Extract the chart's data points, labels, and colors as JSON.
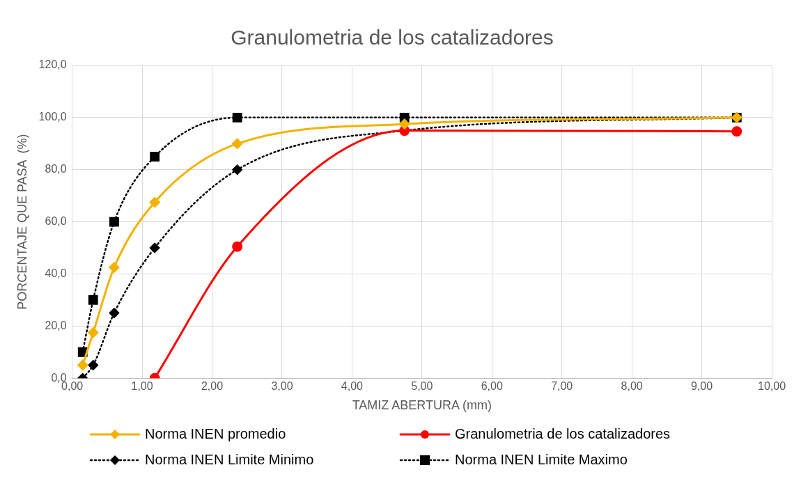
{
  "chart_data": {
    "type": "line",
    "title": "Granulometria de los catalizadores",
    "xlabel": "TAMIZ ABERTURA (mm)",
    "ylabel": "PORCENTAJE QUE PASA  (%)",
    "x": [
      0.15,
      0.3,
      0.6,
      1.18,
      2.36,
      4.75,
      9.5
    ],
    "series": [
      {
        "name": "Norma INEN promedio",
        "color": "#f2b300",
        "marker": "diamond",
        "line_style": "solid",
        "values": [
          5,
          17.5,
          42.5,
          67.5,
          90,
          97.5,
          100
        ]
      },
      {
        "name": "Granulometria de los catalizadores",
        "color": "#ff0000",
        "marker": "circle",
        "line_style": "solid",
        "x": [
          1.18,
          2.36,
          4.75,
          9.5
        ],
        "values": [
          0,
          50.5,
          95,
          94.7
        ]
      },
      {
        "name": "Norma  INEN Limite Minimo",
        "color": "#000000",
        "marker": "diamond",
        "line_style": "dotted",
        "values": [
          0,
          5,
          25,
          50,
          80,
          95,
          100
        ]
      },
      {
        "name": "Norma INEN Limite Maximo",
        "color": "#000000",
        "marker": "square",
        "line_style": "dotted",
        "values": [
          10,
          30,
          60,
          85,
          100,
          100,
          100
        ]
      }
    ],
    "xlim": [
      0,
      10
    ],
    "xticks": [
      {
        "value": 0,
        "label": "0,00"
      },
      {
        "value": 1,
        "label": "1,00"
      },
      {
        "value": 2,
        "label": "2,00"
      },
      {
        "value": 3,
        "label": "3,00"
      },
      {
        "value": 4,
        "label": "4,00"
      },
      {
        "value": 5,
        "label": "5,00"
      },
      {
        "value": 6,
        "label": "6,00"
      },
      {
        "value": 7,
        "label": "7,00"
      },
      {
        "value": 8,
        "label": "8,00"
      },
      {
        "value": 9,
        "label": "9,00"
      },
      {
        "value": 10,
        "label": "10,00"
      }
    ],
    "ylim": [
      0,
      120
    ],
    "yticks": [
      {
        "value": 0,
        "label": "0,0"
      },
      {
        "value": 20,
        "label": "20,0"
      },
      {
        "value": 40,
        "label": "40,0"
      },
      {
        "value": 60,
        "label": "60,0"
      },
      {
        "value": 80,
        "label": "80,0"
      },
      {
        "value": 100,
        "label": "100,0"
      },
      {
        "value": 120,
        "label": "120,0"
      }
    ],
    "grid": true,
    "legend": "bottom"
  }
}
